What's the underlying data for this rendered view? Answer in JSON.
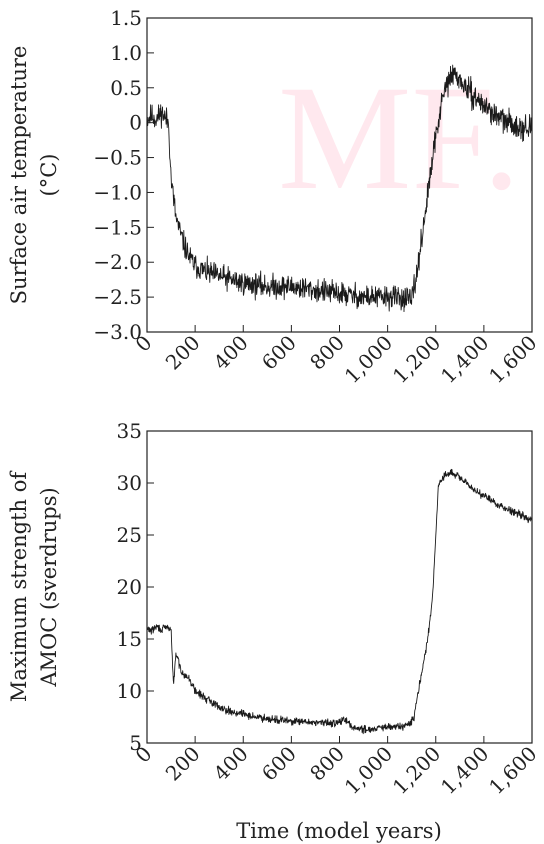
{
  "watermark": "MF.",
  "x_label": "Time (model years)",
  "chart_data": [
    {
      "type": "line",
      "title": "",
      "xlabel": "",
      "ylabel_lines": [
        "Surface air temperature",
        "(°C)"
      ],
      "xlim": [
        0,
        1600
      ],
      "ylim": [
        -3.0,
        1.5
      ],
      "xticks": [
        0,
        200,
        400,
        600,
        800,
        1000,
        1200,
        1400,
        1600
      ],
      "xtick_labels": [
        "0",
        "200",
        "400",
        "600",
        "800",
        "1,000",
        "1,200",
        "1,400",
        "1,600"
      ],
      "yticks": [
        -3.0,
        -2.5,
        -2.0,
        -1.5,
        -1.0,
        -0.5,
        0,
        0.5,
        1.0,
        1.5
      ],
      "ytick_labels": [
        "−3.0",
        "−2.5",
        "−2.0",
        "−1.5",
        "−1.0",
        "−0.5",
        "0",
        "0.5",
        "1.0",
        "1.5"
      ],
      "grid": false,
      "series": [
        {
          "noise": 0.14,
          "x": [
            0,
            20,
            40,
            60,
            80,
            90,
            100,
            120,
            140,
            160,
            180,
            200,
            250,
            300,
            350,
            400,
            500,
            600,
            700,
            800,
            900,
            1000,
            1050,
            1100,
            1120,
            1140,
            1160,
            1180,
            1200,
            1220,
            1240,
            1260,
            1280,
            1300,
            1350,
            1400,
            1450,
            1500,
            1550,
            1600
          ],
          "y": [
            0.05,
            0.1,
            0.05,
            0.15,
            0.05,
            0.0,
            -0.8,
            -1.35,
            -1.6,
            -1.8,
            -1.95,
            -2.05,
            -2.15,
            -2.2,
            -2.25,
            -2.3,
            -2.35,
            -2.35,
            -2.4,
            -2.45,
            -2.5,
            -2.5,
            -2.5,
            -2.55,
            -2.2,
            -1.7,
            -1.2,
            -0.7,
            -0.2,
            0.2,
            0.5,
            0.65,
            0.7,
            0.6,
            0.4,
            0.25,
            0.1,
            0.0,
            -0.05,
            -0.1
          ]
        }
      ]
    },
    {
      "type": "line",
      "title": "",
      "xlabel": "Time (model years)",
      "ylabel_lines": [
        "Maximum strength of",
        "AMOC (sverdrups)"
      ],
      "xlim": [
        0,
        1600
      ],
      "ylim": [
        5,
        35
      ],
      "xticks": [
        0,
        200,
        400,
        600,
        800,
        1000,
        1200,
        1400,
        1600
      ],
      "xtick_labels": [
        "0",
        "200",
        "400",
        "600",
        "800",
        "1,000",
        "1,200",
        "1,400",
        "1,600"
      ],
      "yticks": [
        5,
        10,
        15,
        20,
        25,
        30,
        35
      ],
      "ytick_labels": [
        "5",
        "10",
        "15",
        "20",
        "25",
        "30",
        "35"
      ],
      "grid": false,
      "series": [
        {
          "noise": 0.3,
          "x": [
            0,
            20,
            40,
            60,
            80,
            100,
            110,
            120,
            130,
            140,
            160,
            180,
            200,
            250,
            300,
            350,
            400,
            450,
            500,
            550,
            600,
            650,
            700,
            750,
            800,
            820,
            840,
            860,
            900,
            950,
            1000,
            1050,
            1080,
            1100,
            1110,
            1120,
            1140,
            1160,
            1180,
            1190,
            1200,
            1210,
            1220,
            1240,
            1260,
            1280,
            1300,
            1350,
            1400,
            1450,
            1500,
            1550,
            1600
          ],
          "y": [
            16.0,
            15.8,
            16.2,
            15.9,
            16.1,
            16.0,
            10.5,
            13.5,
            13.0,
            12.0,
            11.5,
            11.0,
            10.0,
            9.2,
            8.5,
            8.0,
            7.8,
            7.5,
            7.4,
            7.2,
            7.1,
            7.0,
            7.0,
            6.9,
            7.0,
            7.3,
            6.8,
            6.5,
            6.3,
            6.4,
            6.5,
            6.6,
            6.7,
            7.0,
            7.5,
            9.0,
            11.5,
            14.0,
            17.5,
            20.0,
            25.0,
            29.5,
            30.2,
            30.8,
            31.0,
            30.8,
            30.5,
            29.5,
            28.8,
            28.0,
            27.5,
            27.0,
            26.5
          ]
        }
      ]
    }
  ]
}
